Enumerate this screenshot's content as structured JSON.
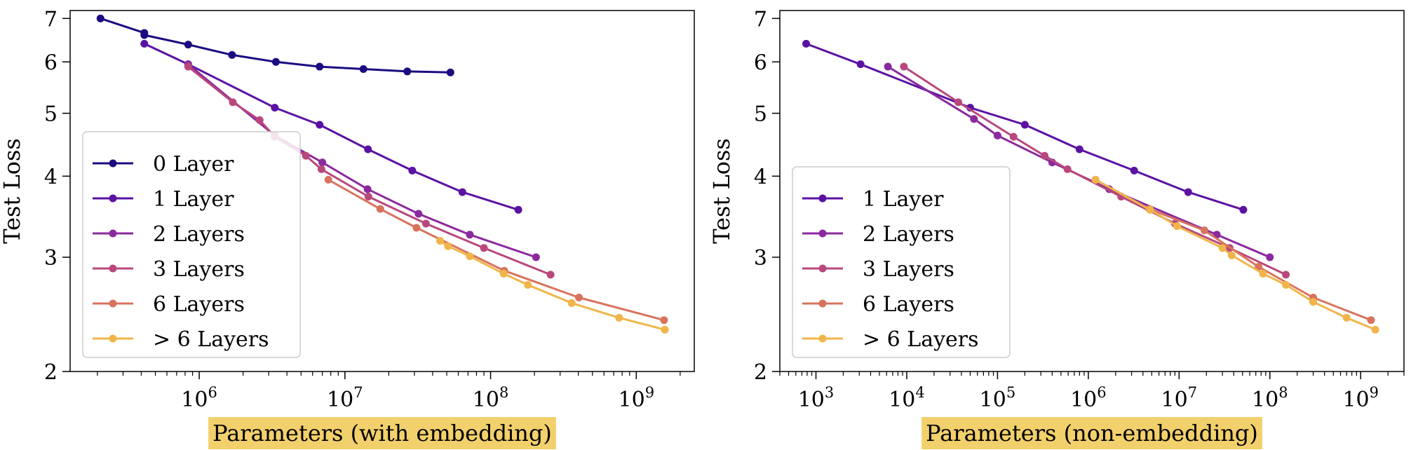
{
  "chart_data": [
    {
      "type": "line",
      "xscale": "log",
      "yscale": "log",
      "xlim": [
        130000,
        2500000000
      ],
      "ylim": [
        2,
        7.2
      ],
      "xticks": [
        1000000,
        10000000,
        100000000,
        1000000000
      ],
      "xtick_labels": [
        {
          "base": "10",
          "exp": "6"
        },
        {
          "base": "10",
          "exp": "7"
        },
        {
          "base": "10",
          "exp": "8"
        },
        {
          "base": "10",
          "exp": "9"
        }
      ],
      "yticks": [
        2,
        3,
        4,
        5,
        6,
        7
      ],
      "ytick_labels": [
        "2",
        "3",
        "4",
        "5",
        "6",
        "7"
      ],
      "xlabel": "Parameters (with embedding)",
      "xlabel_highlight": "#f2d06b",
      "ylabel": "Test Loss",
      "legend_position": "lower-left",
      "series": [
        {
          "name": "0 Layer",
          "color": "#1a0c80",
          "x": [
            210000,
            420000,
            420000,
            840000,
            1680000,
            3360000,
            6700000,
            13400000,
            26800000,
            53000000
          ],
          "y": [
            7.0,
            6.65,
            6.6,
            6.38,
            6.15,
            6.0,
            5.9,
            5.85,
            5.8,
            5.78
          ]
        },
        {
          "name": "1 Layer",
          "color": "#5b12a3",
          "x": [
            420000,
            840000,
            3300000,
            6700000,
            14400000,
            29000000,
            64000000,
            155000000
          ],
          "y": [
            6.4,
            5.95,
            5.1,
            4.8,
            4.4,
            4.08,
            3.78,
            3.55
          ]
        },
        {
          "name": "2 Layers",
          "color": "#8b2a9e",
          "x": [
            840000,
            3300000,
            7000000,
            14300000,
            32000000,
            72000000,
            205000000
          ],
          "y": [
            5.95,
            4.62,
            4.2,
            3.82,
            3.5,
            3.25,
            3.0
          ]
        },
        {
          "name": "3 Layers",
          "color": "#b8487c",
          "x": [
            840000,
            1700000,
            2600000,
            3300000,
            5400000,
            6900000,
            14500000,
            36000000,
            90000000,
            258000000
          ],
          "y": [
            5.9,
            5.2,
            4.88,
            4.6,
            4.3,
            4.1,
            3.72,
            3.38,
            3.1,
            2.82
          ]
        },
        {
          "name": "6 Layers",
          "color": "#d8735e",
          "x": [
            7700000,
            17500000,
            31000000,
            124000000,
            404000000,
            1550000000
          ],
          "y": [
            3.95,
            3.56,
            3.33,
            2.86,
            2.6,
            2.4
          ]
        },
        {
          "name": "> 6 Layers",
          "color": "#f0b54a",
          "x": [
            45000000,
            51000000,
            72000000,
            123000000,
            180000000,
            360000000,
            762000000,
            1570000000
          ],
          "y": [
            3.18,
            3.12,
            3.01,
            2.83,
            2.72,
            2.55,
            2.42,
            2.32
          ]
        }
      ]
    },
    {
      "type": "line",
      "xscale": "log",
      "yscale": "log",
      "xlim": [
        400,
        3000000000
      ],
      "ylim": [
        2,
        7.2
      ],
      "xticks": [
        1000,
        10000,
        100000,
        1000000,
        10000000,
        100000000,
        1000000000
      ],
      "xtick_labels": [
        {
          "base": "10",
          "exp": "3"
        },
        {
          "base": "10",
          "exp": "4"
        },
        {
          "base": "10",
          "exp": "5"
        },
        {
          "base": "10",
          "exp": "6"
        },
        {
          "base": "10",
          "exp": "7"
        },
        {
          "base": "10",
          "exp": "8"
        },
        {
          "base": "10",
          "exp": "9"
        }
      ],
      "yticks": [
        2,
        3,
        4,
        5,
        6,
        7
      ],
      "ytick_labels": [
        "2",
        "3",
        "4",
        "5",
        "6",
        "7"
      ],
      "xlabel": "Parameters (non-embedding)",
      "xlabel_highlight": "#f2d06b",
      "ylabel": "Test Loss",
      "legend_position": "lower-left",
      "series": [
        {
          "name": "1 Layer",
          "color": "#5b12a3",
          "x": [
            780,
            3100,
            50000,
            200000,
            800000,
            3200000,
            12600000,
            51000000
          ],
          "y": [
            6.4,
            5.95,
            5.1,
            4.8,
            4.4,
            4.08,
            3.78,
            3.55
          ]
        },
        {
          "name": "2 Layers",
          "color": "#8b2a9e",
          "x": [
            6200,
            55000,
            100000,
            400000,
            1700000,
            26000000,
            100000000
          ],
          "y": [
            5.9,
            4.9,
            4.62,
            4.2,
            3.82,
            3.25,
            3.0
          ]
        },
        {
          "name": "3 Layers",
          "color": "#b8487c",
          "x": [
            9300,
            37000,
            150000,
            330000,
            590000,
            2300000,
            9000000,
            36000000,
            150000000
          ],
          "y": [
            5.9,
            5.2,
            4.6,
            4.3,
            4.1,
            3.72,
            3.38,
            3.1,
            2.82
          ]
        },
        {
          "name": "6 Layers",
          "color": "#d8735e",
          "x": [
            1200000,
            4700000,
            19000000,
            75000000,
            300000000,
            1300000000
          ],
          "y": [
            3.95,
            3.56,
            3.3,
            2.9,
            2.6,
            2.4
          ]
        },
        {
          "name": "> 6 Layers",
          "color": "#f0b54a",
          "x": [
            1200000,
            4800000,
            9500000,
            30000000,
            38000000,
            84000000,
            150000000,
            300000000,
            700000000,
            1450000000
          ],
          "y": [
            3.95,
            3.55,
            3.35,
            3.1,
            3.02,
            2.83,
            2.72,
            2.56,
            2.42,
            2.32
          ]
        }
      ]
    }
  ]
}
